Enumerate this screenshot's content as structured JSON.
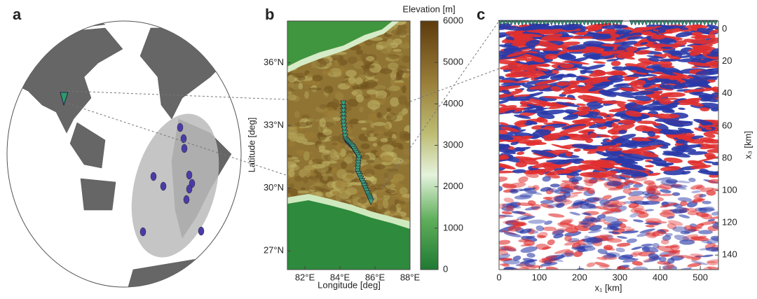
{
  "panels": [
    {
      "label": "a"
    },
    {
      "label": "b",
      "xlabel": "Longitude [deg]",
      "ylabel": "Latitude [deg]",
      "xlim": [
        81,
        88
      ],
      "ylim": [
        26.1,
        38
      ],
      "xticks": [
        {
          "value": 82,
          "label": "82°E"
        },
        {
          "value": 84,
          "label": "84°E"
        },
        {
          "value": 86,
          "label": "86°E"
        },
        {
          "value": 88,
          "label": "88°E"
        }
      ],
      "yticks": [
        {
          "value": 27,
          "label": "27°N"
        },
        {
          "value": 30,
          "label": "30°N"
        },
        {
          "value": 33,
          "label": "33°N"
        },
        {
          "value": 36,
          "label": "36°N"
        }
      ],
      "colorbar": {
        "label": "Elevation [m]",
        "lim": [
          0,
          6000
        ],
        "ticks": [
          0,
          1000,
          2000,
          3000,
          4000,
          5000,
          6000
        ]
      }
    },
    {
      "label": "c",
      "xlabel": "x₁ [km]",
      "ylabel": "x₃ [km]",
      "xlim": [
        0,
        545
      ],
      "ylim": [
        -5,
        149
      ],
      "xticks": [
        0,
        100,
        200,
        300,
        400,
        500
      ],
      "yticks": [
        0,
        20,
        40,
        60,
        80,
        100,
        120,
        140
      ]
    }
  ]
}
